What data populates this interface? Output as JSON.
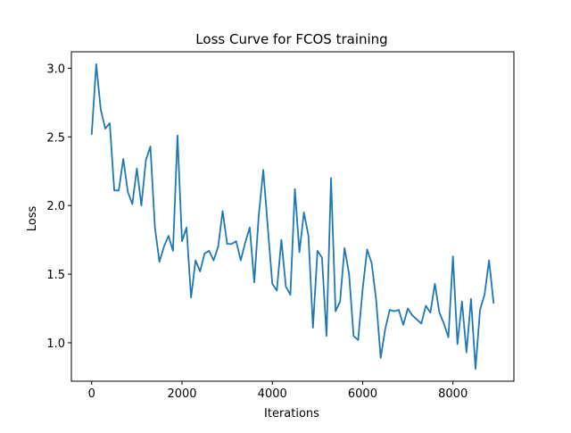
{
  "chart_data": {
    "type": "line",
    "title": "Loss Curve for FCOS training",
    "xlabel": "Iterations",
    "ylabel": "Loss",
    "xlim": [
      -450,
      9350
    ],
    "ylim": [
      0.72,
      3.12
    ],
    "xticks": [
      0,
      2000,
      4000,
      6000,
      8000
    ],
    "xtick_labels": [
      "0",
      "2000",
      "4000",
      "6000",
      "8000"
    ],
    "yticks": [
      1.0,
      1.5,
      2.0,
      2.5,
      3.0
    ],
    "ytick_labels": [
      "1.0",
      "1.5",
      "2.0",
      "2.5",
      "3.0"
    ],
    "grid": false,
    "line_color": "#1f77b4",
    "series": [
      {
        "x": [
          0,
          100,
          200,
          300,
          400,
          500,
          600,
          700,
          800,
          900,
          1000,
          1100,
          1200,
          1300,
          1400,
          1500,
          1600,
          1700,
          1800,
          1900,
          2000,
          2100,
          2200,
          2300,
          2400,
          2500,
          2600,
          2700,
          2800,
          2900,
          3000,
          3100,
          3200,
          3300,
          3400,
          3500,
          3600,
          3700,
          3800,
          3900,
          4000,
          4100,
          4200,
          4300,
          4400,
          4500,
          4600,
          4700,
          4800,
          4900,
          5000,
          5100,
          5200,
          5300,
          5400,
          5500,
          5600,
          5700,
          5800,
          5900,
          6000,
          6100,
          6200,
          6300,
          6400,
          6500,
          6600,
          6700,
          6800,
          6900,
          7000,
          7100,
          7200,
          7300,
          7400,
          7500,
          7600,
          7700,
          7800,
          7900,
          8000,
          8100,
          8200,
          8300,
          8400,
          8500,
          8600,
          8700,
          8800,
          8900
        ],
        "y": [
          2.52,
          3.03,
          2.7,
          2.56,
          2.6,
          2.11,
          2.11,
          2.34,
          2.1,
          2.01,
          2.27,
          2.0,
          2.33,
          2.43,
          1.84,
          1.59,
          1.7,
          1.78,
          1.67,
          2.51,
          1.74,
          1.84,
          1.33,
          1.6,
          1.52,
          1.65,
          1.67,
          1.6,
          1.7,
          1.96,
          1.72,
          1.72,
          1.74,
          1.6,
          1.73,
          1.84,
          1.44,
          1.93,
          2.26,
          1.84,
          1.43,
          1.38,
          1.75,
          1.41,
          1.35,
          2.12,
          1.66,
          1.95,
          1.78,
          1.11,
          1.67,
          1.62,
          1.05,
          2.2,
          1.23,
          1.3,
          1.69,
          1.5,
          1.05,
          1.02,
          1.39,
          1.68,
          1.58,
          1.31,
          0.89,
          1.1,
          1.24,
          1.23,
          1.24,
          1.13,
          1.25,
          1.2,
          1.17,
          1.14,
          1.27,
          1.22,
          1.43,
          1.22,
          1.14,
          1.04,
          1.63,
          0.99,
          1.3,
          0.93,
          1.32,
          0.81,
          1.24,
          1.35,
          1.6,
          1.29
        ]
      }
    ]
  }
}
